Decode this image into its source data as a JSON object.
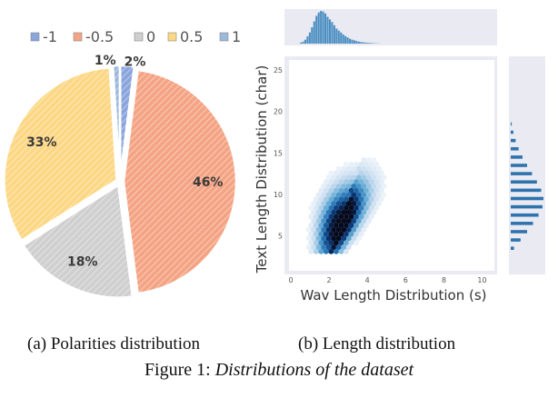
{
  "chart_data": [
    {
      "type": "pie",
      "subcaption": "(a)  Polarities distribution",
      "legend": [
        "-1",
        "-0.5",
        "0",
        "0.5",
        "1"
      ],
      "slices": [
        {
          "label": "-1",
          "value": 2,
          "display": "2%",
          "color": "#8aa4dc"
        },
        {
          "label": "-0.5",
          "value": 46,
          "display": "46%",
          "color": "#f4a484"
        },
        {
          "label": "0",
          "value": 18,
          "display": "18%",
          "color": "#cfcfcf"
        },
        {
          "label": "0.5",
          "value": 33,
          "display": "33%",
          "color": "#fcd784"
        },
        {
          "label": "1",
          "value": 1,
          "display": "1%",
          "color": "#9cb8de"
        }
      ]
    },
    {
      "type": "heatmap",
      "subcaption": "(b)  Length distribution",
      "xlabel": "Wav Length Distribution (s)",
      "ylabel": "Text Length Distribution (char)",
      "xlim": [
        0,
        10.5
      ],
      "ylim": [
        1,
        26
      ],
      "xticks": [
        "0",
        "2",
        "4",
        "6",
        "8",
        "10"
      ],
      "yticks": [
        "5",
        "10",
        "15",
        "20",
        "25"
      ],
      "marginal_x": [
        0.03,
        0.06,
        0.12,
        0.22,
        0.34,
        0.5,
        0.68,
        0.85,
        0.95,
        1.0,
        0.98,
        0.92,
        0.82,
        0.74,
        0.66,
        0.56,
        0.46,
        0.4,
        0.34,
        0.28,
        0.23,
        0.19,
        0.15,
        0.12,
        0.1,
        0.08,
        0.06,
        0.05,
        0.04,
        0.03,
        0.025,
        0.02,
        0.015,
        0.01,
        0.008,
        0.005
      ],
      "marginal_y": [
        {
          "y": 3.5,
          "v": 0.1
        },
        {
          "y": 4.5,
          "v": 0.3
        },
        {
          "y": 5.5,
          "v": 0.5
        },
        {
          "y": 6.5,
          "v": 0.68
        },
        {
          "y": 7.5,
          "v": 0.85
        },
        {
          "y": 8.5,
          "v": 0.97
        },
        {
          "y": 9.5,
          "v": 1.0
        },
        {
          "y": 10.5,
          "v": 0.93
        },
        {
          "y": 11.5,
          "v": 0.8
        },
        {
          "y": 12.5,
          "v": 0.65
        },
        {
          "y": 13.5,
          "v": 0.5
        },
        {
          "y": 14.5,
          "v": 0.36
        },
        {
          "y": 15.5,
          "v": 0.24
        },
        {
          "y": 16.5,
          "v": 0.15
        },
        {
          "y": 17.5,
          "v": 0.08
        },
        {
          "y": 18.5,
          "v": 0.03
        }
      ],
      "density": {
        "x_mode_base": 1.5,
        "x_mode_slope": 0.12,
        "y_mode": 6.5
      }
    }
  ],
  "figure_caption": {
    "prefix": "Figure 1: ",
    "title": "Distributions of the dataset"
  }
}
